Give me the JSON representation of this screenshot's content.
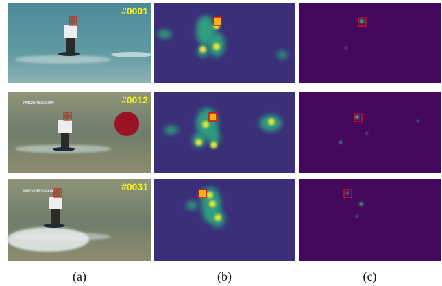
{
  "figure": {
    "rows": [
      {
        "frame": "#0001"
      },
      {
        "frame": "#0012",
        "watermark": "PROGRESSION"
      },
      {
        "frame": "#0031",
        "watermark": "PROGRESSION"
      }
    ],
    "captions": [
      "(a)",
      "(b)",
      "(c)"
    ]
  }
}
